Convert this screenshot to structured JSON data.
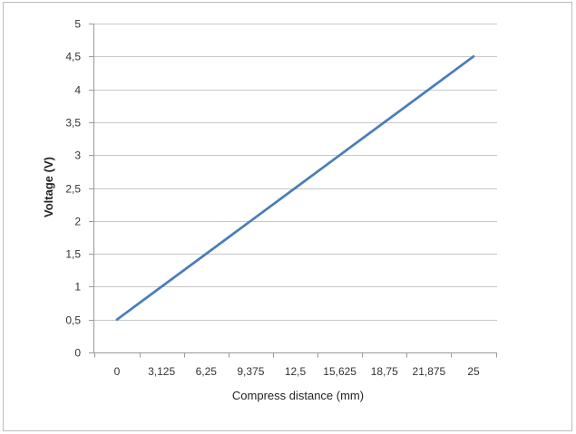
{
  "chart_data": {
    "type": "line",
    "title": "",
    "xlabel": "Compress distance (mm)",
    "ylabel": "Voltage (V)",
    "categories": [
      "0",
      "3,125",
      "6,25",
      "9,375",
      "12,5",
      "15,625",
      "18,75",
      "21,875",
      "25"
    ],
    "x": [
      0,
      3.125,
      6.25,
      9.375,
      12.5,
      15.625,
      18.75,
      21.875,
      25
    ],
    "series": [
      {
        "values": [
          0.5,
          1.0,
          1.5,
          2.0,
          2.5,
          3.0,
          3.5,
          4.0,
          4.5
        ],
        "color": "#4a7ebb"
      }
    ],
    "ylim": [
      0,
      5
    ],
    "yticks": [
      {
        "value": 0,
        "label": "0"
      },
      {
        "value": 0.5,
        "label": "0,5"
      },
      {
        "value": 1,
        "label": "1"
      },
      {
        "value": 1.5,
        "label": "1,5"
      },
      {
        "value": 2,
        "label": "2"
      },
      {
        "value": 2.5,
        "label": "2,5"
      },
      {
        "value": 3,
        "label": "3"
      },
      {
        "value": 3.5,
        "label": "3,5"
      },
      {
        "value": 4,
        "label": "4"
      },
      {
        "value": 4.5,
        "label": "4,5"
      },
      {
        "value": 5,
        "label": "5"
      }
    ],
    "grid": true,
    "legend": "none",
    "colors": {
      "line": "#4a7ebb",
      "grid": "#c8c8c8",
      "axis": "#9a9a9a",
      "frame": "#bdbdbd"
    }
  }
}
